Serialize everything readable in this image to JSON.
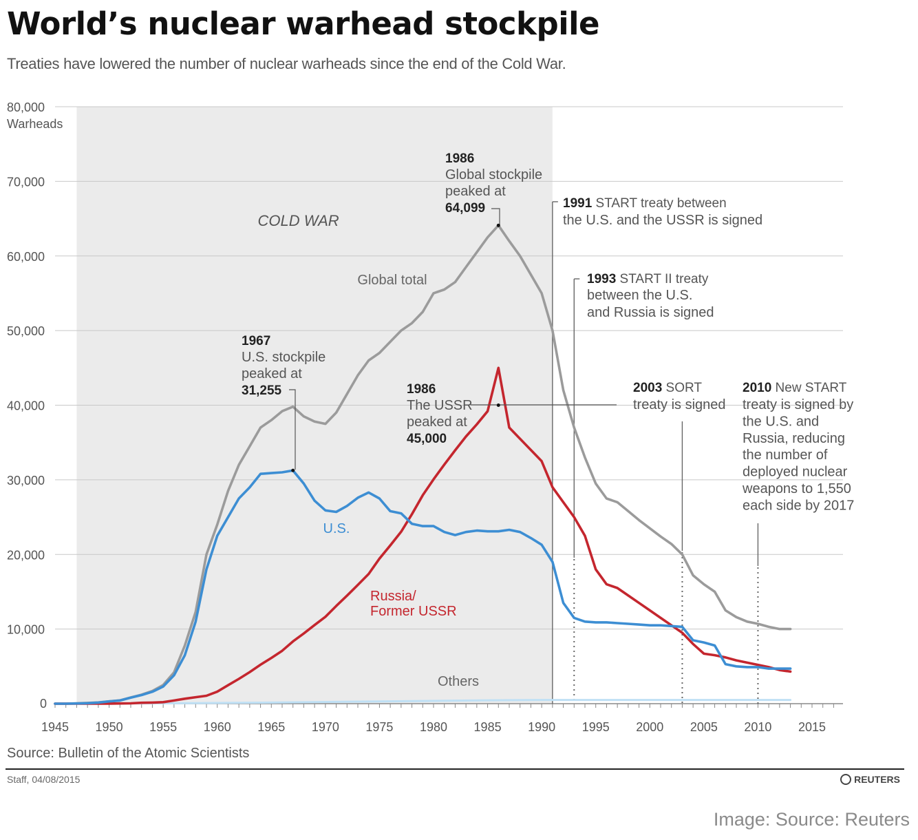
{
  "header": {
    "title": "World’s nuclear warhead stockpile",
    "subtitle": "Treaties have lowered the number of nuclear warheads since the end of the Cold War."
  },
  "chart_data": {
    "type": "line",
    "y_axis": {
      "ticks": [
        "0",
        "10,000",
        "20,000",
        "30,000",
        "40,000",
        "50,000",
        "60,000",
        "70,000",
        "80,000"
      ],
      "unit_label": "Warheads",
      "ylim": [
        0,
        80000
      ]
    },
    "x_axis": {
      "ticks": [
        "1945",
        "1950",
        "1955",
        "1960",
        "1965",
        "1970",
        "1975",
        "1980",
        "1985",
        "1990",
        "1995",
        "2000",
        "2005",
        "2010",
        "2015"
      ],
      "xlim": [
        1945,
        2015
      ]
    },
    "shaded_region": {
      "label": "COLD WAR",
      "x_start": 1947,
      "x_end": 1991,
      "color": "#ebebeb"
    },
    "series": [
      {
        "name": "Global total",
        "color": "#9b9b9b",
        "x": [
          1945,
          1946,
          1947,
          1948,
          1949,
          1950,
          1951,
          1952,
          1953,
          1954,
          1955,
          1956,
          1957,
          1958,
          1959,
          1960,
          1961,
          1962,
          1963,
          1964,
          1965,
          1966,
          1967,
          1968,
          1969,
          1970,
          1971,
          1972,
          1973,
          1974,
          1975,
          1976,
          1977,
          1978,
          1979,
          1980,
          1981,
          1982,
          1983,
          1984,
          1985,
          1986,
          1987,
          1988,
          1989,
          1990,
          1991,
          1992,
          1993,
          1994,
          1995,
          1996,
          1997,
          1998,
          1999,
          2000,
          2001,
          2002,
          2003,
          2004,
          2005,
          2006,
          2007,
          2008,
          2009,
          2010,
          2011,
          2012,
          2013
        ],
        "values": [
          0,
          0,
          50,
          100,
          170,
          300,
          440,
          830,
          1200,
          1700,
          2500,
          4200,
          7800,
          12300,
          20000,
          24000,
          28500,
          32000,
          34500,
          37000,
          38000,
          39200,
          39800,
          38500,
          37800,
          37500,
          39000,
          41500,
          44000,
          46000,
          47000,
          48500,
          50000,
          51000,
          52500,
          55000,
          55500,
          56500,
          58500,
          60500,
          62500,
          64099,
          62000,
          60000,
          57500,
          55000,
          50000,
          42000,
          37000,
          33000,
          29500,
          27500,
          27000,
          25800,
          24600,
          23500,
          22400,
          21400,
          20000,
          17200,
          16000,
          15000,
          12500,
          11600,
          11000,
          10700,
          10300,
          10000,
          10000
        ]
      },
      {
        "name": "U.S.",
        "color": "#3d8ed3",
        "x": [
          1945,
          1946,
          1947,
          1948,
          1949,
          1950,
          1951,
          1952,
          1953,
          1954,
          1955,
          1956,
          1957,
          1958,
          1959,
          1960,
          1961,
          1962,
          1963,
          1964,
          1965,
          1966,
          1967,
          1968,
          1969,
          1970,
          1971,
          1972,
          1973,
          1974,
          1975,
          1976,
          1977,
          1978,
          1979,
          1980,
          1981,
          1982,
          1983,
          1984,
          1985,
          1986,
          1987,
          1988,
          1989,
          1990,
          1991,
          1992,
          1993,
          1994,
          1995,
          1996,
          1997,
          1998,
          1999,
          2000,
          2001,
          2002,
          2003,
          2004,
          2005,
          2006,
          2007,
          2008,
          2009,
          2010,
          2011,
          2012,
          2013
        ],
        "values": [
          0,
          0,
          30,
          60,
          150,
          300,
          420,
          800,
          1150,
          1600,
          2300,
          3800,
          6500,
          11000,
          18000,
          22500,
          25000,
          27500,
          29000,
          30800,
          30900,
          31000,
          31255,
          29500,
          27200,
          25900,
          25700,
          26500,
          27600,
          28300,
          27500,
          25800,
          25500,
          24100,
          23800,
          23800,
          23000,
          22600,
          23000,
          23200,
          23100,
          23100,
          23300,
          23000,
          22200,
          21300,
          19000,
          13500,
          11500,
          11000,
          10900,
          10900,
          10800,
          10700,
          10600,
          10500,
          10500,
          10400,
          10300,
          8500,
          8200,
          7800,
          5300,
          5000,
          4900,
          4900,
          4700,
          4700,
          4700
        ]
      },
      {
        "name": "Russia/ Former USSR",
        "color": "#c4262e",
        "x": [
          1945,
          1946,
          1947,
          1948,
          1949,
          1950,
          1951,
          1952,
          1953,
          1954,
          1955,
          1956,
          1957,
          1958,
          1959,
          1960,
          1961,
          1962,
          1963,
          1964,
          1965,
          1966,
          1967,
          1968,
          1969,
          1970,
          1971,
          1972,
          1973,
          1974,
          1975,
          1976,
          1977,
          1978,
          1979,
          1980,
          1981,
          1982,
          1983,
          1984,
          1985,
          1986,
          1987,
          1988,
          1989,
          1990,
          1991,
          1992,
          1993,
          1994,
          1995,
          1996,
          1997,
          1998,
          1999,
          2000,
          2001,
          2002,
          2003,
          2004,
          2005,
          2006,
          2007,
          2008,
          2009,
          2010,
          2011,
          2012,
          2013
        ],
        "values": [
          0,
          0,
          0,
          0,
          0,
          5,
          25,
          50,
          120,
          150,
          200,
          426,
          660,
          869,
          1060,
          1605,
          2471,
          3322,
          4238,
          5221,
          6129,
          7089,
          8339,
          9399,
          10538,
          11643,
          13092,
          14478,
          15915,
          17385,
          19443,
          21205,
          23044,
          25393,
          27935,
          30062,
          32049,
          33952,
          35804,
          37431,
          39197,
          45000,
          37000,
          35500,
          34000,
          32500,
          29000,
          27000,
          25000,
          22500,
          18000,
          16000,
          15500,
          14500,
          13500,
          12500,
          11500,
          10500,
          9500,
          8000,
          6700,
          6500,
          6200,
          5800,
          5500,
          5200,
          4900,
          4500,
          4300
        ]
      },
      {
        "name": "Others",
        "color": "#bfe0f5",
        "x": [
          1945,
          1955,
          1965,
          1975,
          1985,
          1990,
          2000,
          2005,
          2010,
          2013
        ],
        "values": [
          0,
          50,
          150,
          300,
          450,
          500,
          500,
          500,
          500,
          500
        ]
      }
    ],
    "annotations": [
      {
        "year_bold": "1986",
        "text": [
          "Global stockpile",
          "peaked at"
        ],
        "value_bold": "64,099",
        "x": 1986,
        "y": 64099
      },
      {
        "year_bold": "1967",
        "text": [
          "U.S. stockpile",
          "peaked at"
        ],
        "value_bold": "31,255",
        "x": 1967,
        "y": 31255
      },
      {
        "year_bold": "1986",
        "text": [
          "The USSR",
          "peaked at"
        ],
        "value_bold": "45,000",
        "x": 1986,
        "y": 40000
      },
      {
        "year_bold": "1991",
        "lines": [
          "START treaty between",
          "the U.S. and the USSR is signed"
        ],
        "x": 1991
      },
      {
        "year_bold": "1993",
        "lines": [
          "START II treaty",
          "between the U.S.",
          "and Russia is signed"
        ],
        "x": 1993
      },
      {
        "year_bold": "2003",
        "lines": [
          "SORT",
          "treaty is signed"
        ],
        "x": 2003
      },
      {
        "year_bold": "2010",
        "lines": [
          "New START",
          "treaty is signed by",
          "the U.S. and",
          "Russia, reducing",
          "the number of",
          "deployed nuclear",
          "weapons to 1,550",
          "each side by 2017"
        ],
        "x": 2010
      }
    ],
    "series_labels": {
      "global": "Global total",
      "us": "U.S.",
      "russia_line1": "Russia/",
      "russia_line2": "Former USSR",
      "others": "Others"
    }
  },
  "footer": {
    "source": "Source: Bulletin of the Atomic Scientists",
    "staff": "Staff, 04/08/2015",
    "brand": "REUTERS",
    "credit": "Image: Source: Reuters"
  }
}
